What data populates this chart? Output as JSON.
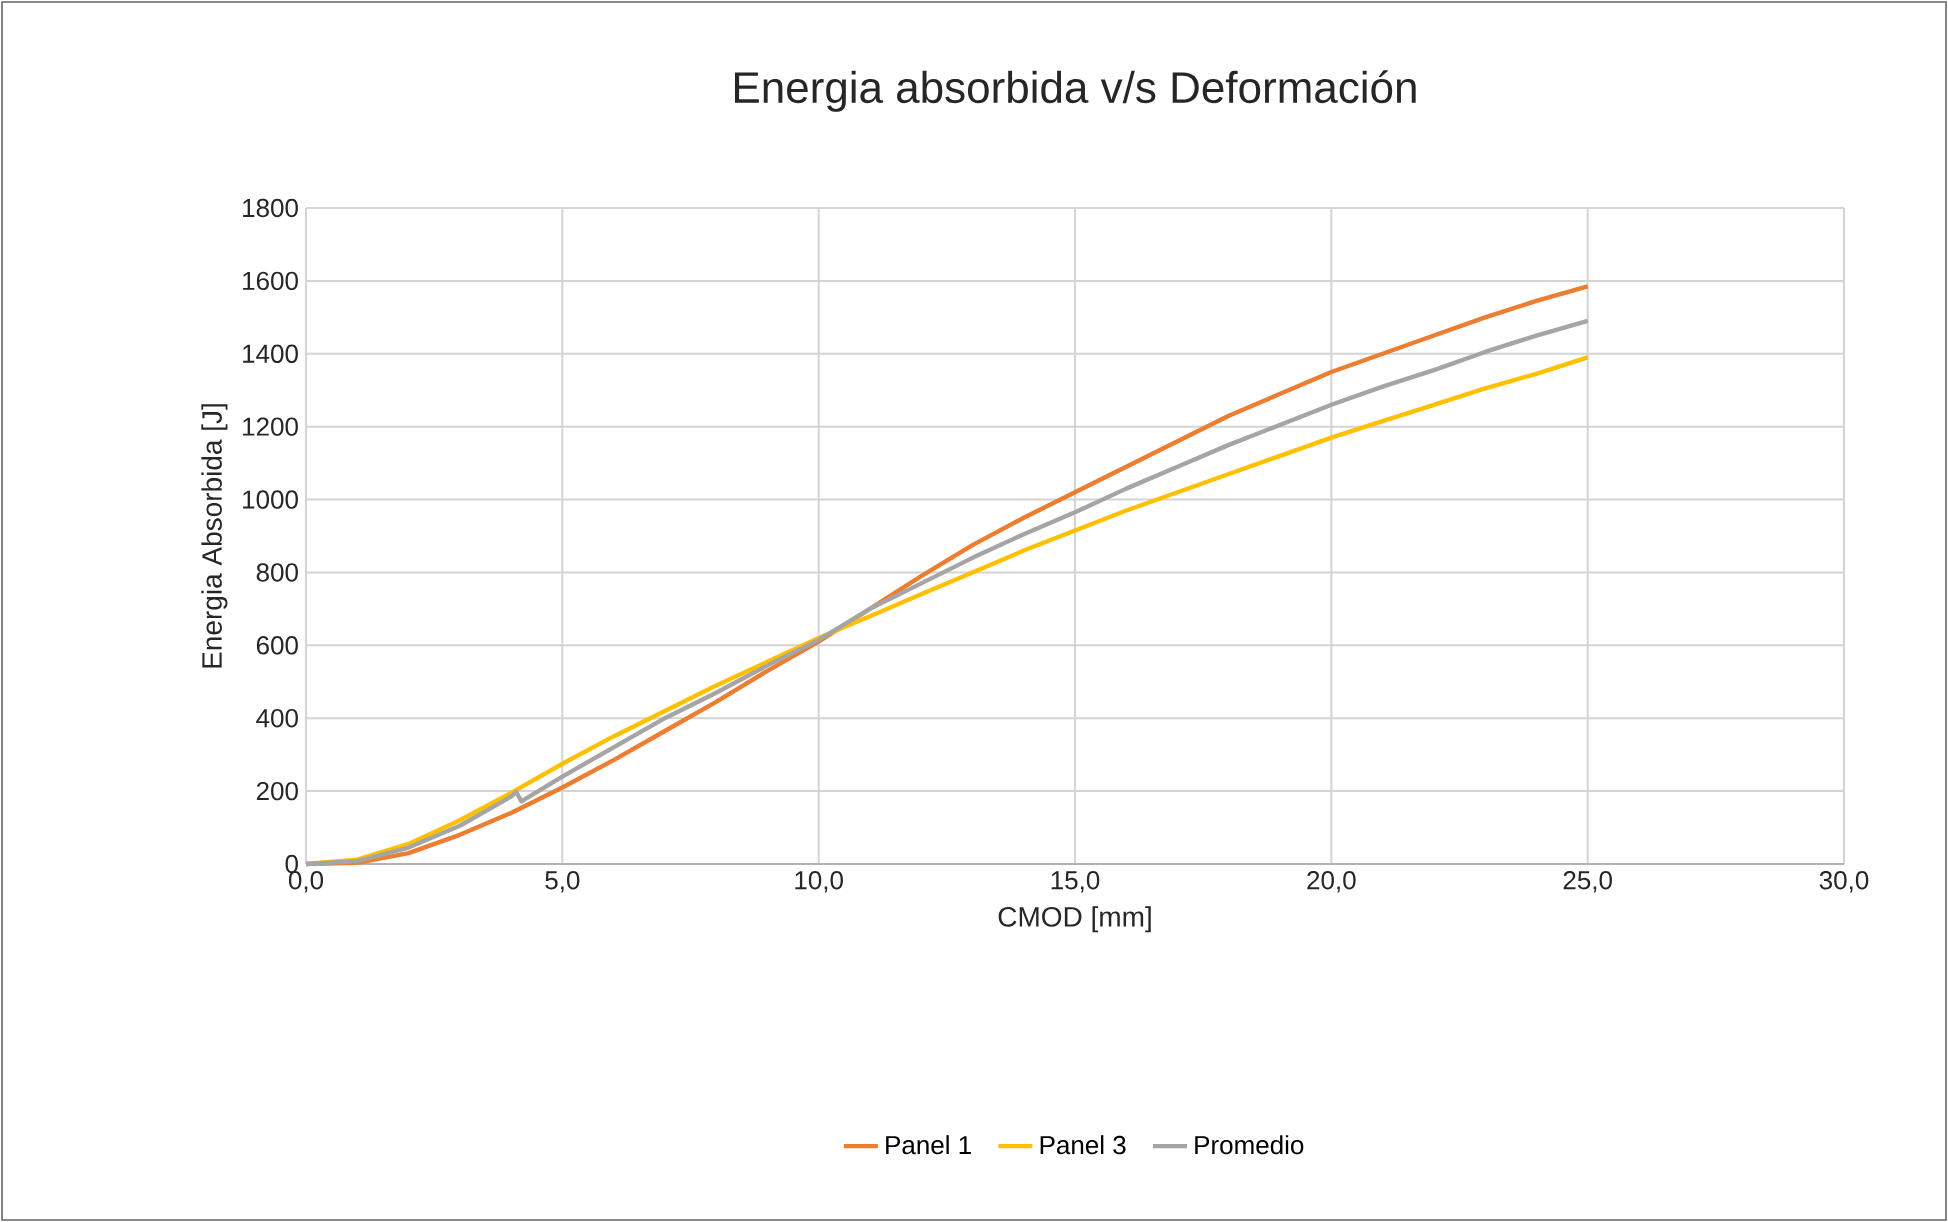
{
  "chart_data": {
    "type": "line",
    "title": "Energia absorbida v/s Deformación",
    "xlabel": "CMOD [mm]",
    "ylabel": "Energia Absorbida [J]",
    "xlim": [
      0,
      30
    ],
    "xticks": [
      {
        "value": 0,
        "label": "0,0"
      },
      {
        "value": 5,
        "label": "5,0"
      },
      {
        "value": 10,
        "label": "10,0"
      },
      {
        "value": 15,
        "label": "15,0"
      },
      {
        "value": 20,
        "label": "20,0"
      },
      {
        "value": 25,
        "label": "25,0"
      },
      {
        "value": 30,
        "label": "30,0"
      }
    ],
    "ylim": [
      0,
      1800
    ],
    "yticks": [
      0,
      200,
      400,
      600,
      800,
      1000,
      1200,
      1400,
      1600,
      1800
    ],
    "grid": true,
    "legend": "bottom",
    "marker": "none",
    "line_style": "solid",
    "series": [
      {
        "name": "Panel 1",
        "color": "#ed7d31",
        "x": [
          0,
          1,
          2,
          3,
          4,
          5,
          6,
          7,
          8,
          9,
          10,
          11,
          12,
          13,
          14,
          15,
          16,
          17,
          18,
          19,
          20,
          21,
          22,
          23,
          24,
          25
        ],
        "values": [
          0,
          3,
          30,
          80,
          140,
          210,
          285,
          365,
          445,
          530,
          610,
          700,
          790,
          875,
          950,
          1020,
          1090,
          1160,
          1230,
          1290,
          1350,
          1400,
          1450,
          1500,
          1545,
          1585
        ]
      },
      {
        "name": "Panel 3",
        "color": "#ffc000",
        "x": [
          0,
          1,
          2,
          3,
          4,
          5,
          6,
          7,
          8,
          9,
          10,
          11,
          12,
          13,
          14,
          15,
          16,
          17,
          18,
          19,
          20,
          21,
          22,
          23,
          24,
          25
        ],
        "values": [
          0,
          12,
          55,
          120,
          195,
          275,
          350,
          420,
          490,
          555,
          620,
          680,
          740,
          800,
          860,
          915,
          970,
          1020,
          1070,
          1120,
          1170,
          1215,
          1260,
          1305,
          1345,
          1390
        ]
      },
      {
        "name": "Promedio",
        "color": "#a5a5a5",
        "x": [
          0,
          1,
          2,
          3,
          4,
          4.1,
          4.2,
          5,
          6,
          7,
          8,
          9,
          10,
          11,
          12,
          13,
          14,
          15,
          16,
          17,
          18,
          19,
          20,
          21,
          22,
          23,
          24,
          25
        ],
        "values": [
          0,
          8,
          45,
          105,
          185,
          198,
          172,
          240,
          320,
          400,
          470,
          545,
          615,
          700,
          770,
          840,
          905,
          965,
          1030,
          1090,
          1150,
          1205,
          1260,
          1310,
          1355,
          1405,
          1450,
          1490
        ]
      }
    ]
  }
}
